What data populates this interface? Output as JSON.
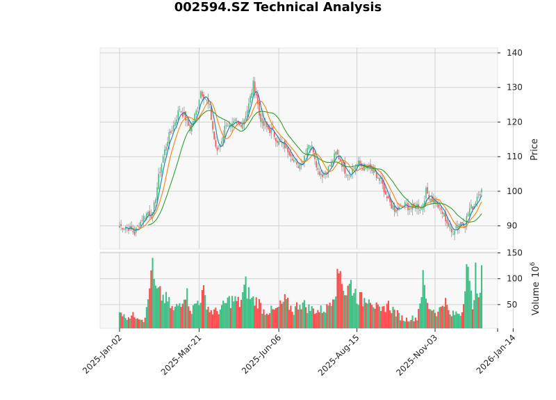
{
  "title": "002594.SZ Technical Analysis",
  "colors": {
    "up": "#26a69a",
    "up_fill": "#3dbf86",
    "down": "#ff4d4d",
    "wick": "#888888",
    "ma_short": "#1f77b4",
    "ma_mid": "#ff7f0e",
    "ma_long": "#2ca02c",
    "panel_bg": "#f8f8f8",
    "grid": "#d0d0d0"
  },
  "chart_data": [
    {
      "type": "candlestick",
      "panel": "price",
      "title": "002594.SZ Technical Analysis",
      "xlabel": "",
      "ylabel": "Price",
      "y_ticks": [
        90,
        100,
        110,
        120,
        130,
        140
      ],
      "ylim": [
        83.3,
        141.4
      ],
      "x_tick_labels": [
        "2025-Jan-02",
        "2025-Mar-21",
        "2025-Jun-06",
        "2025-Aug-15",
        "2025-Nov-03",
        "2026-Jan-14"
      ],
      "x_tick_index": [
        0,
        53,
        106,
        158,
        210,
        262
      ],
      "grid": true,
      "moving_averages": [
        "MA short (blue)",
        "MA mid (orange)",
        "MA long (green)"
      ],
      "close_anchors": [
        [
          0,
          90
        ],
        [
          6,
          89.5
        ],
        [
          10,
          88
        ],
        [
          15,
          92
        ],
        [
          19,
          94
        ],
        [
          22,
          93
        ],
        [
          26,
          104
        ],
        [
          29,
          110
        ],
        [
          32,
          115
        ],
        [
          36,
          119
        ],
        [
          40,
          124
        ],
        [
          44,
          121
        ],
        [
          47,
          118
        ],
        [
          51,
          123
        ],
        [
          54,
          129
        ],
        [
          57,
          127
        ],
        [
          60,
          124
        ],
        [
          63,
          115
        ],
        [
          65,
          111
        ],
        [
          68,
          115
        ],
        [
          71,
          120
        ],
        [
          74,
          118
        ],
        [
          77,
          120
        ],
        [
          80,
          119
        ],
        [
          83,
          121
        ],
        [
          86,
          125
        ],
        [
          89,
          131
        ],
        [
          91,
          128
        ],
        [
          93,
          122
        ],
        [
          96,
          119
        ],
        [
          99,
          118
        ],
        [
          102,
          117
        ],
        [
          106,
          114
        ],
        [
          110,
          113
        ],
        [
          114,
          111
        ],
        [
          118,
          107
        ],
        [
          122,
          109
        ],
        [
          126,
          114
        ],
        [
          129,
          112
        ],
        [
          132,
          106
        ],
        [
          135,
          105
        ],
        [
          138,
          106
        ],
        [
          141,
          108
        ],
        [
          144,
          111
        ],
        [
          147,
          109
        ],
        [
          150,
          106
        ],
        [
          153,
          105
        ],
        [
          156,
          107
        ],
        [
          159,
          108
        ],
        [
          162,
          107
        ],
        [
          165,
          107
        ],
        [
          168,
          106
        ],
        [
          171,
          104
        ],
        [
          174,
          103
        ],
        [
          177,
          98
        ],
        [
          180,
          97
        ],
        [
          183,
          94
        ],
        [
          186,
          95
        ],
        [
          190,
          96
        ],
        [
          194,
          95
        ],
        [
          198,
          96
        ],
        [
          201,
          95
        ],
        [
          204,
          100
        ],
        [
          207,
          98
        ],
        [
          210,
          97
        ],
        [
          213,
          95
        ],
        [
          216,
          93
        ],
        [
          219,
          90
        ],
        [
          221,
          88
        ],
        [
          224,
          90
        ],
        [
          227,
          91
        ],
        [
          230,
          91
        ],
        [
          233,
          95
        ],
        [
          236,
          96
        ],
        [
          239,
          100
        ],
        [
          241,
          100
        ]
      ]
    },
    {
      "type": "bar",
      "panel": "volume",
      "ylabel": "Volume  10^6",
      "y_ticks": [
        50,
        100,
        150
      ],
      "ylim": [
        0,
        152
      ],
      "volume_anchors": [
        [
          0,
          48
        ],
        [
          3,
          28
        ],
        [
          8,
          30
        ],
        [
          12,
          30
        ],
        [
          16,
          22
        ],
        [
          18,
          40
        ],
        [
          20,
          85
        ],
        [
          21,
          145
        ],
        [
          22,
          120
        ],
        [
          24,
          80
        ],
        [
          28,
          70
        ],
        [
          32,
          60
        ],
        [
          36,
          40
        ],
        [
          40,
          55
        ],
        [
          44,
          82
        ],
        [
          48,
          40
        ],
        [
          52,
          60
        ],
        [
          56,
          75
        ],
        [
          60,
          40
        ],
        [
          64,
          38
        ],
        [
          68,
          45
        ],
        [
          72,
          60
        ],
        [
          76,
          62
        ],
        [
          80,
          55
        ],
        [
          84,
          90
        ],
        [
          88,
          62
        ],
        [
          92,
          60
        ],
        [
          96,
          40
        ],
        [
          100,
          40
        ],
        [
          104,
          40
        ],
        [
          110,
          60
        ],
        [
          116,
          40
        ],
        [
          120,
          58
        ],
        [
          126,
          45
        ],
        [
          132,
          40
        ],
        [
          138,
          45
        ],
        [
          142,
          75
        ],
        [
          145,
          100
        ],
        [
          147,
          130
        ],
        [
          150,
          75
        ],
        [
          154,
          95
        ],
        [
          158,
          70
        ],
        [
          162,
          60
        ],
        [
          166,
          75
        ],
        [
          170,
          50
        ],
        [
          174,
          35
        ],
        [
          178,
          55
        ],
        [
          182,
          42
        ],
        [
          186,
          30
        ],
        [
          190,
          22
        ],
        [
          194,
          25
        ],
        [
          198,
          25
        ],
        [
          202,
          100
        ],
        [
          205,
          50
        ],
        [
          208,
          45
        ],
        [
          212,
          35
        ],
        [
          216,
          65
        ],
        [
          220,
          30
        ],
        [
          224,
          35
        ],
        [
          228,
          38
        ],
        [
          231,
          140
        ],
        [
          233,
          85
        ],
        [
          235,
          55
        ],
        [
          237,
          110
        ],
        [
          239,
          55
        ],
        [
          241,
          108
        ]
      ]
    }
  ],
  "axes": {
    "price_label": "Price",
    "volume_label": "Volume",
    "volume_exponent": "10",
    "volume_exponent_power": "6"
  }
}
